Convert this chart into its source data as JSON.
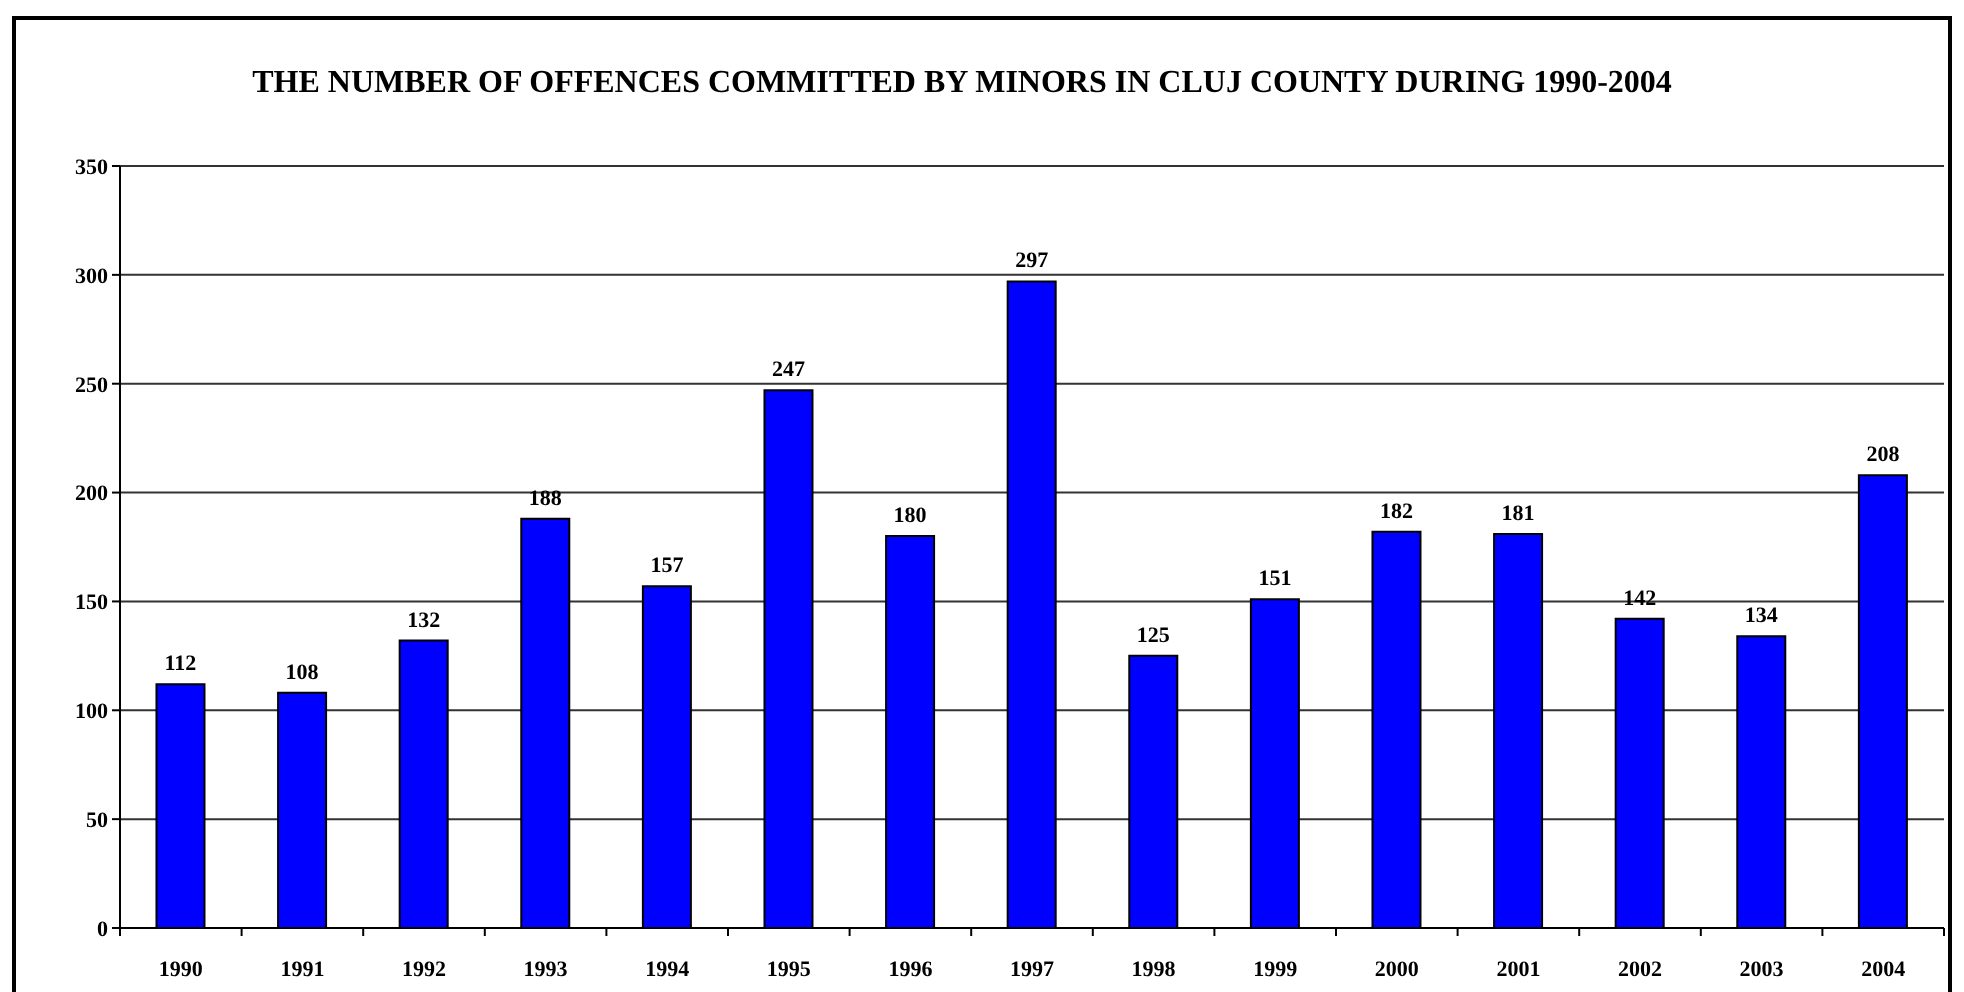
{
  "chart_data": {
    "type": "bar",
    "title": "THE NUMBER OF OFFENCES COMMITTED BY MINORS IN CLUJ COUNTY DURING 1990-2004",
    "categories": [
      "1990",
      "1991",
      "1992",
      "1993",
      "1994",
      "1995",
      "1996",
      "1997",
      "1998",
      "1999",
      "2000",
      "2001",
      "2002",
      "2003",
      "2004"
    ],
    "values": [
      112,
      108,
      132,
      188,
      157,
      247,
      180,
      297,
      125,
      151,
      182,
      181,
      142,
      134,
      208
    ],
    "color": "#0000ff",
    "ylim": [
      0,
      350
    ],
    "yticks": [
      0,
      50,
      100,
      150,
      200,
      250,
      300,
      350
    ],
    "grid": "y",
    "data_labels": true
  }
}
